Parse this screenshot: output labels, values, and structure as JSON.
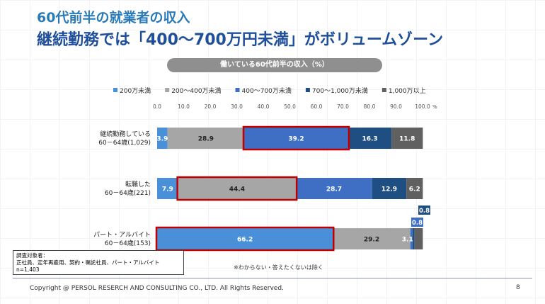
{
  "header": {
    "title": "60代前半の就業者の収入",
    "subtitle": "継続勤務では「400～700万円未満」がボリュームゾーン"
  },
  "chart_data": {
    "type": "bar",
    "orientation": "horizontal-stacked",
    "title": "働いている60代前半の収入（%）",
    "axis_unit": "%",
    "xlim": [
      0,
      100
    ],
    "ticks": [
      "0.0",
      "10.0",
      "20.0",
      "30.0",
      "40.0",
      "50.0",
      "60.0",
      "70.0",
      "80.0",
      "90.0",
      "100.0"
    ],
    "categories": [
      [
        "継続勤務している",
        "60－64歳(1,029)"
      ],
      [
        "転職した",
        "60－64歳(221)"
      ],
      [
        "パート・アルバイト",
        "60－64歳(153)"
      ]
    ],
    "series": [
      {
        "name": "200万未満",
        "color": "#4a90d9",
        "values": [
          3.9,
          7.9,
          66.2
        ]
      },
      {
        "name": "200～400万未満",
        "color": "#a6a6a6",
        "values": [
          28.9,
          44.4,
          29.2
        ]
      },
      {
        "name": "400～700万未満",
        "color": "#3e6fc4",
        "values": [
          39.2,
          28.7,
          0.8
        ]
      },
      {
        "name": "700～1,000万未満",
        "color": "#1f4f82",
        "values": [
          16.3,
          12.9,
          0.8
        ]
      },
      {
        "name": "1,000万以上",
        "color": "#606060",
        "values": [
          11.8,
          6.2,
          3.1
        ]
      }
    ],
    "highlights": [
      {
        "row": 0,
        "series": 2
      },
      {
        "row": 1,
        "series": 1
      },
      {
        "row": 2,
        "series": 0
      }
    ],
    "highlight_color": "#c00000",
    "footnote": "※わからない・答えたくないは除く"
  },
  "note": {
    "line1": "調査対象者：",
    "line2": "正社員、定年再雇用、契約・嘱託社員、パート・アルバイト",
    "line3": "n=1,403"
  },
  "footer": {
    "copyright": "Copyright @ PERSOL RESERCH AND CONSULTING CO., LTD. All Rights Reserved.",
    "page": "8"
  }
}
